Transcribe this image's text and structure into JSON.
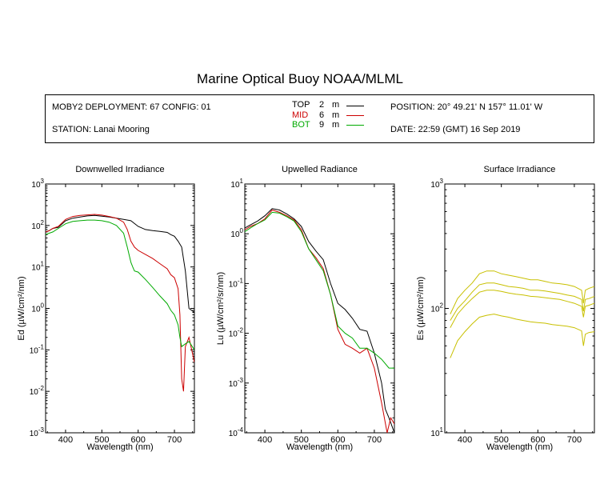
{
  "main_title": "Marine Optical Buoy NOAA/MLML",
  "info": {
    "deployment": "MOBY2 DEPLOYMENT: 67 CONFIG: 01",
    "station": "STATION: Lanai Mooring",
    "position": "POSITION: 20° 49.21' N   157° 11.01' W",
    "date": "DATE: 22:59 (GMT) 16 Sep 2019",
    "legend": [
      {
        "name": "TOP",
        "depth": "2",
        "unit": "m",
        "color": "#000000"
      },
      {
        "name": "MID",
        "depth": "6",
        "unit": "m",
        "color": "#cc0000"
      },
      {
        "name": "BOT",
        "depth": "9",
        "unit": "m",
        "color": "#00aa00"
      }
    ]
  },
  "chart_data": [
    {
      "type": "line",
      "title": "Downwelled Irradiance",
      "xlabel": "Wavelength (nm)",
      "ylabel": "Ed  (µW/cm²/nm)",
      "xlim": [
        345,
        755
      ],
      "ylim": [
        0.001,
        1000
      ],
      "yscale": "log",
      "xticks": [
        400,
        500,
        600,
        700
      ],
      "yticks": [
        0.001,
        0.01,
        0.1,
        1,
        10,
        100,
        1000
      ],
      "yticklabels": [
        [
          "10",
          "-3"
        ],
        [
          "10",
          "-2"
        ],
        [
          "10",
          "-1"
        ],
        [
          "10",
          "0"
        ],
        [
          "10",
          "1"
        ],
        [
          "10",
          "2"
        ],
        [
          "10",
          "3"
        ]
      ],
      "series": [
        {
          "color": "#000000",
          "x": [
            345,
            355,
            365,
            380,
            400,
            420,
            440,
            460,
            480,
            500,
            520,
            540,
            560,
            580,
            600,
            620,
            640,
            660,
            680,
            690,
            700,
            710,
            720,
            730,
            740,
            755
          ],
          "y": [
            70,
            75,
            85,
            90,
            130,
            150,
            160,
            170,
            175,
            168,
            160,
            150,
            140,
            130,
            95,
            80,
            75,
            72,
            68,
            60,
            55,
            42,
            30,
            8,
            1.0,
            0.8
          ]
        },
        {
          "color": "#cc0000",
          "x": [
            345,
            355,
            365,
            380,
            400,
            420,
            440,
            460,
            480,
            500,
            520,
            540,
            560,
            570,
            580,
            590,
            600,
            620,
            640,
            660,
            680,
            690,
            700,
            710,
            715,
            720,
            725,
            730,
            740,
            755
          ],
          "y": [
            70,
            75,
            85,
            95,
            140,
            165,
            175,
            180,
            185,
            178,
            165,
            150,
            120,
            80,
            42,
            30,
            25,
            20,
            16,
            12,
            9,
            6.5,
            5.5,
            3,
            0.7,
            0.02,
            0.01,
            0.12,
            0.2,
            0.05
          ]
        },
        {
          "color": "#00aa00",
          "x": [
            345,
            355,
            365,
            380,
            400,
            420,
            440,
            460,
            480,
            500,
            520,
            540,
            560,
            570,
            580,
            585,
            590,
            600,
            620,
            640,
            660,
            680,
            690,
            700,
            710,
            715,
            720,
            730,
            740,
            755
          ],
          "y": [
            60,
            65,
            70,
            85,
            110,
            125,
            130,
            135,
            135,
            130,
            120,
            100,
            65,
            30,
            13,
            10,
            8,
            7.5,
            5,
            3.2,
            2,
            1.3,
            0.9,
            0.7,
            0.4,
            0.2,
            0.12,
            0.14,
            0.16,
            0.1
          ]
        }
      ]
    },
    {
      "type": "line",
      "title": "Upwelled Radiance",
      "xlabel": "Wavelength (nm)",
      "ylabel": "Lu  (µW/cm²/sr/nm)",
      "xlim": [
        345,
        755
      ],
      "ylim": [
        0.0001,
        10
      ],
      "yscale": "log",
      "xticks": [
        400,
        500,
        600,
        700
      ],
      "yticks": [
        0.0001,
        0.001,
        0.01,
        0.1,
        1,
        10
      ],
      "yticklabels": [
        [
          "10",
          "-4"
        ],
        [
          "10",
          "-3"
        ],
        [
          "10",
          "-2"
        ],
        [
          "10",
          "-1"
        ],
        [
          "10",
          "0"
        ],
        [
          "10",
          "1"
        ]
      ],
      "series": [
        {
          "color": "#000000",
          "x": [
            345,
            360,
            380,
            400,
            420,
            440,
            460,
            480,
            500,
            520,
            540,
            560,
            580,
            600,
            620,
            640,
            660,
            680,
            700,
            720,
            730,
            740,
            755
          ],
          "y": [
            1.3,
            1.5,
            1.8,
            2.3,
            3.2,
            3.0,
            2.5,
            2.0,
            1.4,
            0.7,
            0.45,
            0.3,
            0.1,
            0.04,
            0.03,
            0.02,
            0.012,
            0.011,
            0.004,
            0.001,
            0.0003,
            0.0002,
            0.0001
          ]
        },
        {
          "color": "#cc0000",
          "x": [
            345,
            360,
            380,
            400,
            420,
            440,
            460,
            480,
            500,
            520,
            540,
            560,
            580,
            600,
            620,
            640,
            660,
            680,
            700,
            720,
            735,
            745,
            755
          ],
          "y": [
            1.2,
            1.4,
            1.6,
            2.0,
            3.0,
            2.7,
            2.3,
            1.9,
            1.2,
            0.5,
            0.33,
            0.2,
            0.06,
            0.012,
            0.006,
            0.005,
            0.004,
            0.005,
            0.002,
            0.0004,
            0.0001,
            0.0002,
            0.00015
          ]
        },
        {
          "color": "#00aa00",
          "x": [
            345,
            360,
            380,
            400,
            420,
            440,
            460,
            480,
            500,
            520,
            540,
            560,
            580,
            600,
            620,
            640,
            660,
            680,
            700,
            720,
            740,
            755
          ],
          "y": [
            1.1,
            1.3,
            1.6,
            1.9,
            2.7,
            2.6,
            2.2,
            1.8,
            1.1,
            0.5,
            0.3,
            0.18,
            0.06,
            0.014,
            0.01,
            0.008,
            0.005,
            0.005,
            0.004,
            0.003,
            0.002,
            0.002
          ]
        }
      ]
    },
    {
      "type": "line",
      "title": "Surface Irradiance",
      "xlabel": "Wavelength (nm)",
      "ylabel": "Es  (µW/cm²/nm)",
      "xlim": [
        345,
        755
      ],
      "ylim": [
        10,
        1000
      ],
      "yscale": "log",
      "xticks": [
        400,
        500,
        600,
        700
      ],
      "yticks": [
        10,
        100,
        1000
      ],
      "yticklabels": [
        [
          "10",
          "1"
        ],
        [
          "10",
          "2"
        ],
        [
          "10",
          "3"
        ]
      ],
      "series": [
        {
          "color": "#c8c000",
          "x": [
            360,
            380,
            400,
            420,
            440,
            460,
            480,
            500,
            520,
            540,
            560,
            580,
            600,
            620,
            640,
            660,
            680,
            700,
            720,
            725,
            730,
            740,
            755
          ],
          "y": [
            90,
            120,
            140,
            160,
            190,
            200,
            200,
            190,
            185,
            180,
            175,
            170,
            170,
            165,
            160,
            158,
            155,
            150,
            140,
            110,
            140,
            145,
            150
          ]
        },
        {
          "color": "#c8c000",
          "x": [
            360,
            380,
            400,
            420,
            440,
            460,
            480,
            500,
            520,
            540,
            560,
            580,
            600,
            620,
            640,
            660,
            680,
            700,
            720,
            725,
            730,
            740,
            755
          ],
          "y": [
            80,
            100,
            115,
            135,
            155,
            160,
            160,
            155,
            150,
            148,
            145,
            140,
            140,
            138,
            135,
            132,
            128,
            125,
            118,
            95,
            118,
            120,
            125
          ]
        },
        {
          "color": "#c8c000",
          "x": [
            360,
            380,
            400,
            420,
            440,
            460,
            480,
            500,
            520,
            540,
            560,
            580,
            600,
            620,
            640,
            660,
            680,
            700,
            720,
            725,
            730,
            740,
            755
          ],
          "y": [
            70,
            90,
            105,
            120,
            135,
            140,
            140,
            137,
            133,
            130,
            128,
            125,
            124,
            122,
            120,
            118,
            114,
            110,
            104,
            85,
            104,
            106,
            110
          ]
        },
        {
          "color": "#c8c000",
          "x": [
            360,
            380,
            400,
            420,
            440,
            460,
            480,
            500,
            520,
            540,
            560,
            580,
            600,
            620,
            640,
            660,
            680,
            700,
            720,
            725,
            730,
            740,
            755
          ],
          "y": [
            40,
            55,
            65,
            75,
            85,
            88,
            90,
            87,
            85,
            82,
            80,
            78,
            77,
            76,
            74,
            73,
            72,
            70,
            66,
            50,
            62,
            64,
            65
          ]
        }
      ]
    }
  ]
}
